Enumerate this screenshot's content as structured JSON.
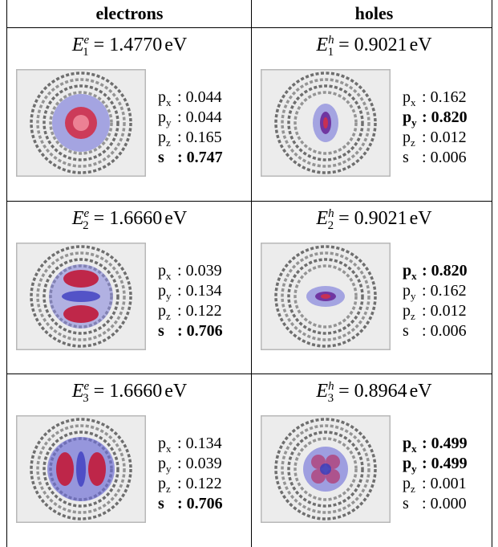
{
  "header": {
    "columns": [
      "electrons",
      "holes"
    ]
  },
  "table": {
    "relation": "=",
    "unit": "eV",
    "separator": ":",
    "rows": [
      [
        {
          "symbol": "E",
          "superscript": "e",
          "subscript": "1",
          "energy": "1.4770",
          "components": [
            {
              "name": "p",
              "index": "x",
              "value": "0.044",
              "bold": false
            },
            {
              "name": "p",
              "index": "y",
              "value": "0.044",
              "bold": false
            },
            {
              "name": "p",
              "index": "z",
              "value": "0.165",
              "bold": false
            },
            {
              "name": "s",
              "value": "0.747",
              "bold": true
            }
          ]
        },
        {
          "symbol": "E",
          "superscript": "h",
          "subscript": "1",
          "energy": "0.9021",
          "components": [
            {
              "name": "p",
              "index": "x",
              "value": "0.162",
              "bold": false
            },
            {
              "name": "p",
              "index": "y",
              "value": "0.820",
              "bold": true
            },
            {
              "name": "p",
              "index": "z",
              "value": "0.012",
              "bold": false
            },
            {
              "name": "s",
              "value": "0.006",
              "bold": false
            }
          ]
        }
      ],
      [
        {
          "symbol": "E",
          "superscript": "e",
          "subscript": "2",
          "energy": "1.6660",
          "components": [
            {
              "name": "p",
              "index": "x",
              "value": "0.039",
              "bold": false
            },
            {
              "name": "p",
              "index": "y",
              "value": "0.134",
              "bold": false
            },
            {
              "name": "p",
              "index": "z",
              "value": "0.122",
              "bold": false
            },
            {
              "name": "s",
              "value": "0.706",
              "bold": true
            }
          ]
        },
        {
          "symbol": "E",
          "superscript": "h",
          "subscript": "2",
          "energy": "0.9021",
          "components": [
            {
              "name": "p",
              "index": "x",
              "value": "0.820",
              "bold": true
            },
            {
              "name": "p",
              "index": "y",
              "value": "0.162",
              "bold": false
            },
            {
              "name": "p",
              "index": "z",
              "value": "0.012",
              "bold": false
            },
            {
              "name": "s",
              "value": "0.006",
              "bold": false
            }
          ]
        }
      ],
      [
        {
          "symbol": "E",
          "superscript": "e",
          "subscript": "3",
          "energy": "1.6660",
          "components": [
            {
              "name": "p",
              "index": "x",
              "value": "0.134",
              "bold": false
            },
            {
              "name": "p",
              "index": "y",
              "value": "0.039",
              "bold": false
            },
            {
              "name": "p",
              "index": "z",
              "value": "0.122",
              "bold": false
            },
            {
              "name": "s",
              "value": "0.706",
              "bold": true
            }
          ]
        },
        {
          "symbol": "E",
          "superscript": "h",
          "subscript": "3",
          "energy": "0.8964",
          "components": [
            {
              "name": "p",
              "index": "x",
              "value": "0.499",
              "bold": true
            },
            {
              "name": "p",
              "index": "y",
              "value": "0.499",
              "bold": true
            },
            {
              "name": "p",
              "index": "z",
              "value": "0.001",
              "bold": false
            },
            {
              "name": "s",
              "value": "0.000",
              "bold": false
            }
          ]
        }
      ]
    ]
  }
}
